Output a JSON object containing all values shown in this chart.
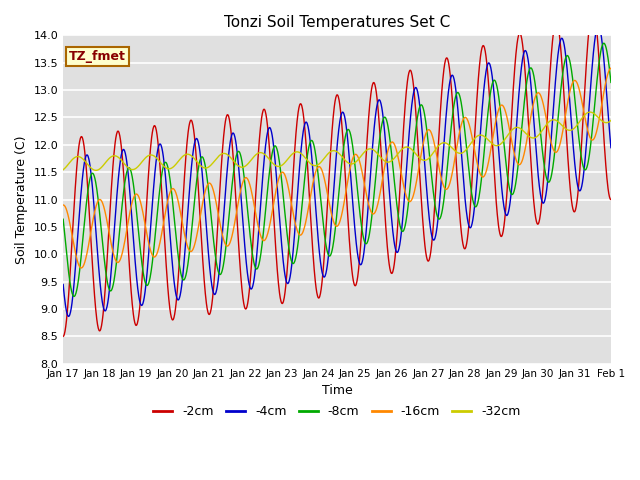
{
  "title": "Tonzi Soil Temperatures Set C",
  "xlabel": "Time",
  "ylabel": "Soil Temperature (C)",
  "ylim": [
    8.0,
    14.0
  ],
  "yticks": [
    8.0,
    8.5,
    9.0,
    9.5,
    10.0,
    10.5,
    11.0,
    11.5,
    12.0,
    12.5,
    13.0,
    13.5,
    14.0
  ],
  "xtick_labels": [
    "Jan 17",
    "Jan 18",
    "Jan 19",
    "Jan 20",
    "Jan 21",
    "Jan 22",
    "Jan 23",
    "Jan 24",
    "Jan 25",
    "Jan 26",
    "Jan 27",
    "Jan 28",
    "Jan 29",
    "Jan 30",
    "Jan 31",
    "Feb 1"
  ],
  "legend_label": "TZ_fmet",
  "series": [
    {
      "label": "-2cm",
      "color": "#cc0000"
    },
    {
      "label": "-4cm",
      "color": "#0000cc"
    },
    {
      "label": "-8cm",
      "color": "#00aa00"
    },
    {
      "label": "-16cm",
      "color": "#ff8800"
    },
    {
      "label": "-32cm",
      "color": "#cccc00"
    }
  ],
  "background_color": "#e0e0e0",
  "grid_color": "#ffffff"
}
